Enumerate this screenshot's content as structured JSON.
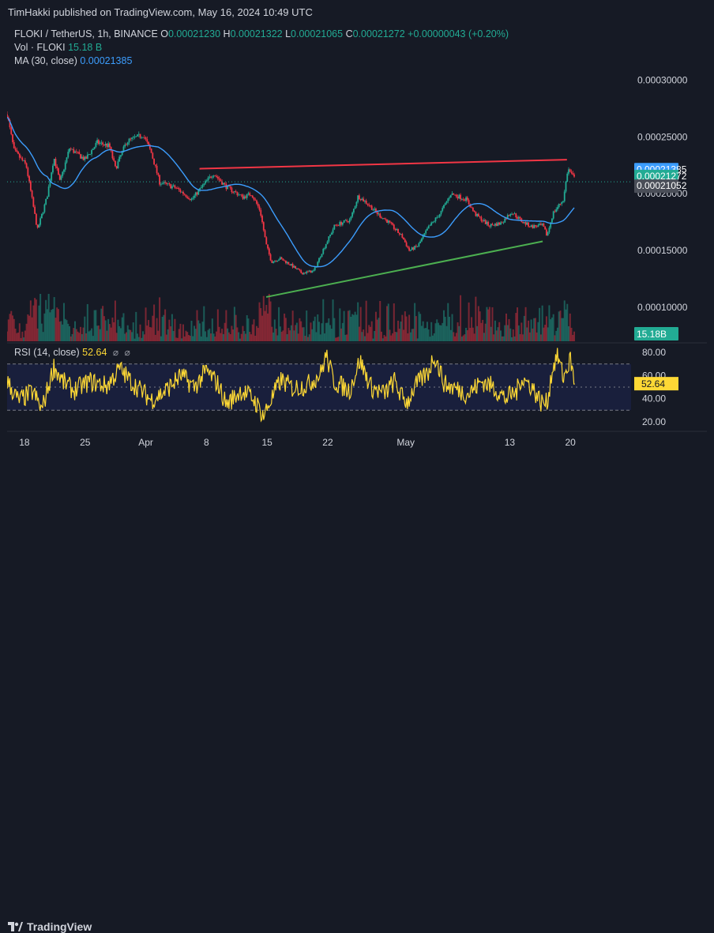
{
  "publish_line": "TimHakki published on TradingView.com, May 16, 2024 10:49 UTC",
  "legend": {
    "symbol": "FLOKI / TetherUS, 1h, BINANCE",
    "o_label": "O",
    "o_value": "0.00021230",
    "h_label": "H",
    "h_value": "0.00021322",
    "l_label": "L",
    "l_value": "0.00021065",
    "c_label": "C",
    "c_value": "0.00021272",
    "change": "+0.00000043 (+0.20%)",
    "vol_label": "Vol · FLOKI",
    "vol_value": "15.18 B",
    "ma_label": "MA (30, close)",
    "ma_value": "0.00021385"
  },
  "rsi_legend": {
    "label": "RSI (14, close)",
    "value": "52.64"
  },
  "brand": "TradingView",
  "colors": {
    "up": "#22ab94",
    "down": "#f23645",
    "ma": "#3c9dfd",
    "rsi": "#fdd835",
    "resistance": "#f23645",
    "support": "#4caf50",
    "rsi_band": "#1e2451"
  },
  "chart_data": [
    {
      "type": "candlestick",
      "title": "FLOKI / TetherUS, 1h, BINANCE",
      "y_axis_ticks": [
        "0.00030000",
        "0.00025000",
        "0.00020000",
        "0.00015000",
        "0.00010000"
      ],
      "y_tick_values": [
        0.0003,
        0.00025,
        0.0002,
        0.00015,
        0.0001
      ],
      "ylim": [
        7e-05,
        0.00034
      ],
      "x_axis_ticks": [
        "18",
        "25",
        "Apr",
        "8",
        "15",
        "22",
        "May",
        "13",
        "20"
      ],
      "x_tick_days": [
        2,
        9,
        16,
        23,
        30,
        37,
        46,
        58,
        65
      ],
      "xlim_days": [
        0,
        72
      ],
      "x_start": "2024-03-16",
      "close_path": [
        [
          0,
          0.00027
        ],
        [
          0.8,
          0.000238
        ],
        [
          2.2,
          0.000225
        ],
        [
          3.5,
          0.000168
        ],
        [
          4.6,
          0.000197
        ],
        [
          5.4,
          0.000232
        ],
        [
          6.1,
          0.00021
        ],
        [
          7.2,
          0.00024
        ],
        [
          9,
          0.00023
        ],
        [
          10.4,
          0.000245
        ],
        [
          11.8,
          0.000242
        ],
        [
          12.5,
          0.000222
        ],
        [
          13.8,
          0.000246
        ],
        [
          15.7,
          0.000252
        ],
        [
          16.6,
          0.000237
        ],
        [
          17.6,
          0.00021
        ],
        [
          19.5,
          0.000205
        ],
        [
          21.3,
          0.000195
        ],
        [
          22.8,
          0.000209
        ],
        [
          23.8,
          0.000218
        ],
        [
          25.3,
          0.000206
        ],
        [
          27.2,
          0.000197
        ],
        [
          28.2,
          0.0002
        ],
        [
          29.2,
          0.000185
        ],
        [
          29.9,
          0.000155
        ],
        [
          30.5,
          0.00014
        ],
        [
          31.5,
          0.000143
        ],
        [
          32.6,
          0.000138
        ],
        [
          34,
          0.00013
        ],
        [
          35.4,
          0.000132
        ],
        [
          36.3,
          0.000148
        ],
        [
          37.8,
          0.000172
        ],
        [
          39.6,
          0.000177
        ],
        [
          40.5,
          0.000198
        ],
        [
          41.5,
          0.000192
        ],
        [
          42.8,
          0.000182
        ],
        [
          44,
          0.000175
        ],
        [
          45.6,
          0.000162
        ],
        [
          46.4,
          0.00015
        ],
        [
          47.4,
          0.000154
        ],
        [
          48.6,
          0.00017
        ],
        [
          50,
          0.000183
        ],
        [
          51.2,
          0.0002
        ],
        [
          53,
          0.000195
        ],
        [
          54,
          0.000182
        ],
        [
          55.6,
          0.000172
        ],
        [
          57,
          0.000174
        ],
        [
          58.2,
          0.000184
        ],
        [
          59.5,
          0.000175
        ],
        [
          60.5,
          0.000171
        ],
        [
          61.8,
          0.000172
        ],
        [
          62.3,
          0.000163
        ],
        [
          63,
          0.000183
        ],
        [
          64.2,
          0.000195
        ],
        [
          64.7,
          0.000222
        ],
        [
          65.5,
          0.000213
        ]
      ],
      "ma": {
        "label": "MA (30, close)",
        "value": 0.00021385
      },
      "trendlines": [
        {
          "name": "resistance",
          "from": [
            22.2,
            0.000222
          ],
          "to": [
            64.6,
            0.00023
          ]
        },
        {
          "name": "support",
          "from": [
            29.9,
            0.000109
          ],
          "to": [
            61.8,
            0.000158
          ]
        }
      ],
      "last_price_line": 0.00021052,
      "price_labels": [
        "0.00021385",
        "0.00021272",
        "0.00021052"
      ],
      "price_label_values": [
        0.00021385,
        0.00021272,
        0.00021052
      ],
      "volume_label": "15.18B"
    },
    {
      "type": "line",
      "title": "RSI (14, close)",
      "y_axis_ticks": [
        "80.00",
        "60.00",
        "40.00",
        "20.00"
      ],
      "y_tick_values": [
        80,
        60,
        40,
        20
      ],
      "ylim": [
        13,
        87
      ],
      "bands": [
        70,
        50,
        30
      ],
      "anchors": [
        [
          0,
          55
        ],
        [
          1.3,
          38
        ],
        [
          3,
          46
        ],
        [
          4,
          30
        ],
        [
          5.4,
          68
        ],
        [
          6.4,
          55
        ],
        [
          7.7,
          47
        ],
        [
          9.5,
          55
        ],
        [
          11.5,
          51
        ],
        [
          13,
          66
        ],
        [
          14.4,
          54
        ],
        [
          15.6,
          46
        ],
        [
          16.6,
          39
        ],
        [
          18,
          45
        ],
        [
          20.1,
          60
        ],
        [
          21.6,
          50
        ],
        [
          23,
          64
        ],
        [
          24.3,
          53
        ],
        [
          25.3,
          35
        ],
        [
          27,
          47
        ],
        [
          28.4,
          40
        ],
        [
          29.6,
          25
        ],
        [
          30.2,
          35
        ],
        [
          31.6,
          56
        ],
        [
          33,
          49
        ],
        [
          34.7,
          52
        ],
        [
          36.2,
          62
        ],
        [
          36.8,
          78
        ],
        [
          37.7,
          55
        ],
        [
          39.5,
          47
        ],
        [
          40.7,
          73
        ],
        [
          42,
          50
        ],
        [
          43.5,
          44
        ],
        [
          44.7,
          55
        ],
        [
          45.5,
          42
        ],
        [
          46.2,
          37
        ],
        [
          47,
          50
        ],
        [
          48.6,
          63
        ],
        [
          49.3,
          78
        ],
        [
          50.5,
          52
        ],
        [
          51.7,
          49
        ],
        [
          53.2,
          44
        ],
        [
          54.8,
          55
        ],
        [
          56.1,
          50
        ],
        [
          57.5,
          40
        ],
        [
          58.8,
          46
        ],
        [
          59.3,
          58
        ],
        [
          60.5,
          51
        ],
        [
          61.6,
          37
        ],
        [
          62.3,
          36
        ],
        [
          62.9,
          65
        ],
        [
          63.5,
          78
        ],
        [
          64.2,
          58
        ],
        [
          65,
          74
        ],
        [
          65.5,
          52.64
        ]
      ],
      "value_label": "52.64",
      "value": 52.64
    }
  ]
}
